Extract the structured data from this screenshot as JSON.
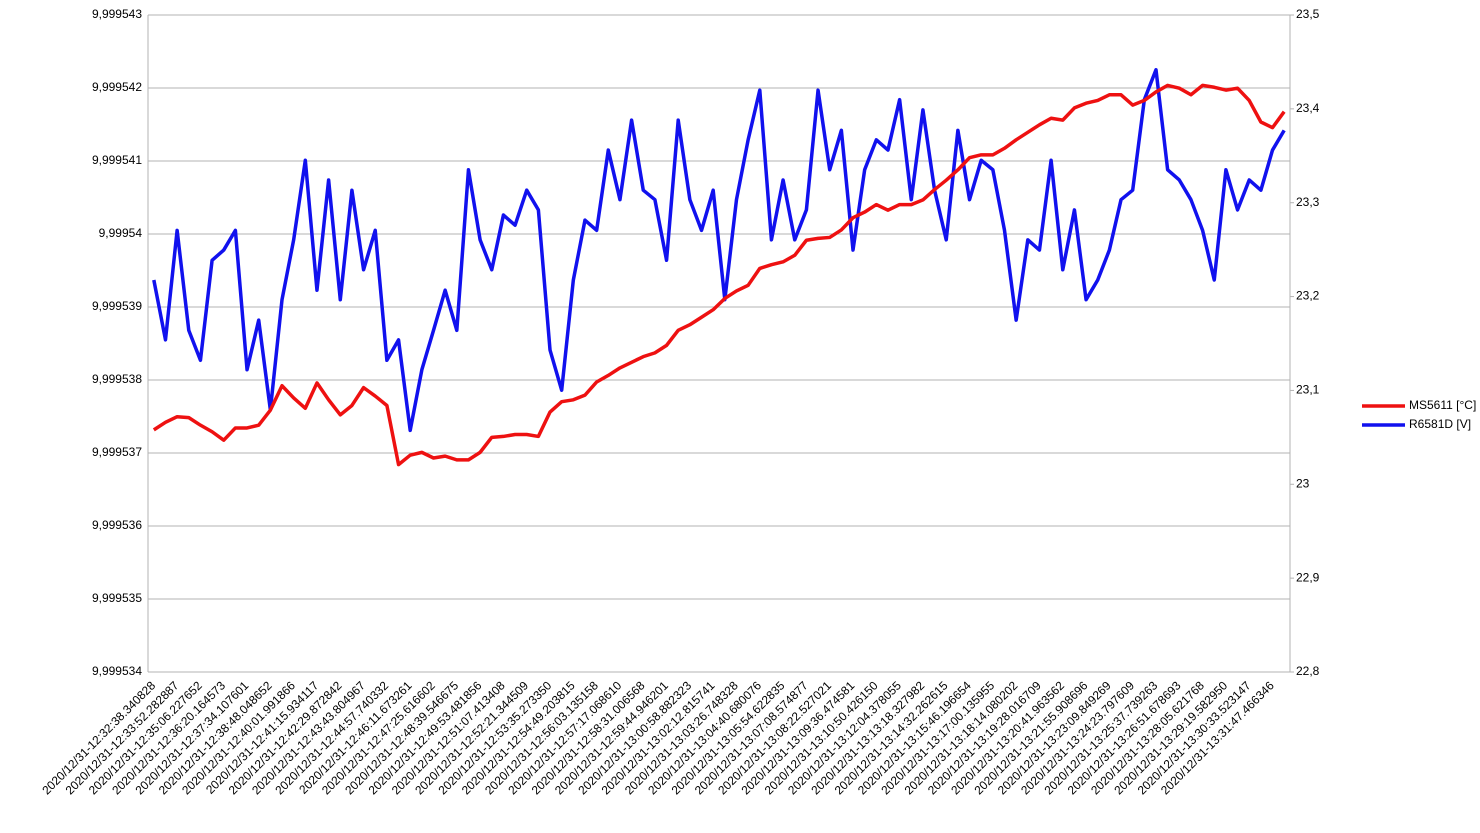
{
  "chart_data": {
    "type": "line",
    "categories": [
      "2020/12/31-12:32:38.340828",
      null,
      "2020/12/31-12:33:52.282887",
      null,
      "2020/12/31-12:35:06.227652",
      null,
      "2020/12/31-12:36:20.164573",
      null,
      "2020/12/31-12:37:34.107601",
      null,
      "2020/12/31-12:38:48.048652",
      null,
      "2020/12/31-12:40:01.991866",
      null,
      "2020/12/31-12:41:15.934117",
      null,
      "2020/12/31-12:42:29.872842",
      null,
      "2020/12/31-12:43:43.804967",
      null,
      "2020/12/31-12:44:57.740332",
      null,
      "2020/12/31-12:46:11.673261",
      null,
      "2020/12/31-12:47:25.616602",
      null,
      "2020/12/31-12:48:39.546675",
      null,
      "2020/12/31-12:49:53.481856",
      null,
      "2020/12/31-12:51:07.413408",
      null,
      "2020/12/31-12:52:21.344509",
      null,
      "2020/12/31-12:53:35.273350",
      null,
      "2020/12/31-12:54:49.203815",
      null,
      "2020/12/31-12:56:03.135158",
      null,
      "2020/12/31-12:57:17.068610",
      null,
      "2020/12/31-12:58:31.006568",
      null,
      "2020/12/31-12:59:44.946201",
      null,
      "2020/12/31-13:00:58.882323",
      null,
      "2020/12/31-13:02:12.815741",
      null,
      "2020/12/31-13:03:26.748328",
      null,
      "2020/12/31-13:04:40.680076",
      null,
      "2020/12/31-13:05:54.622835",
      null,
      "2020/12/31-13:07:08.574877",
      null,
      "2020/12/31-13:08:22.527021",
      null,
      "2020/12/31-13:09:36.474581",
      null,
      "2020/12/31-13:10:50.426150",
      null,
      "2020/12/31-13:12:04.378055",
      null,
      "2020/12/31-13:13:18.327982",
      null,
      "2020/12/31-13:14:32.262615",
      null,
      "2020/12/31-13:15:46.196654",
      null,
      "2020/12/31-13:17:00.135955",
      null,
      "2020/12/31-13:18:14.080202",
      null,
      "2020/12/31-13:19:28.016709",
      null,
      "2020/12/31-13:20:41.963562",
      null,
      "2020/12/31-13:21:55.908696",
      null,
      "2020/12/31-13:23:09.849269",
      null,
      "2020/12/31-13:24:23.797609",
      null,
      "2020/12/31-13:25:37.739263",
      null,
      "2020/12/31-13:26:51.678693",
      null,
      "2020/12/31-13:28:05.621768",
      null,
      "2020/12/31-13:29:19.582950",
      null,
      "2020/12/31-13:30:33.523147",
      null,
      "2020/12/31-13:31:47.466346",
      null
    ],
    "series": [
      {
        "name": "MS5611 [°C]",
        "color": "#ee1111",
        "axis": "y2",
        "values": [
          23.058,
          23.066,
          23.072,
          23.071,
          23.063,
          23.056,
          23.047,
          23.06,
          23.06,
          23.063,
          23.079,
          23.105,
          23.092,
          23.081,
          23.108,
          23.09,
          23.074,
          23.084,
          23.103,
          23.094,
          23.084,
          23.021,
          23.031,
          23.034,
          23.028,
          23.03,
          23.026,
          23.026,
          23.034,
          23.05,
          23.051,
          23.053,
          23.053,
          23.051,
          23.077,
          23.088,
          23.09,
          23.095,
          23.109,
          23.116,
          23.124,
          23.13,
          23.136,
          23.14,
          23.148,
          23.164,
          23.17,
          23.178,
          23.186,
          23.198,
          23.206,
          23.212,
          23.23,
          23.234,
          23.237,
          23.244,
          23.26,
          23.262,
          23.263,
          23.271,
          23.284,
          23.29,
          23.298,
          23.292,
          23.298,
          23.298,
          23.303,
          23.314,
          23.324,
          23.335,
          23.348,
          23.351,
          23.351,
          23.358,
          23.367,
          23.375,
          23.383,
          23.39,
          23.388,
          23.401,
          23.406,
          23.409,
          23.415,
          23.415,
          23.404,
          23.409,
          23.418,
          23.425,
          23.422,
          23.415,
          23.425,
          23.423,
          23.42,
          23.422,
          23.409,
          23.386,
          23.38,
          23.397
        ]
      },
      {
        "name": "R6581D [V]",
        "color": "#1111ee",
        "axis": "y",
        "values": [
          9.99953937,
          9.99953855,
          9.99954005,
          9.99953868,
          9.99953827,
          9.99953964,
          9.99953978,
          9.99954005,
          9.99953814,
          9.99953882,
          9.99953759,
          9.9995391,
          9.99953992,
          9.99954101,
          9.99953923,
          9.99954074,
          9.9995391,
          9.9995406,
          9.99953951,
          9.99954005,
          9.99953827,
          9.99953855,
          9.99953731,
          9.99953814,
          9.99953868,
          9.99953923,
          9.99953868,
          9.99954088,
          9.99953992,
          9.99953951,
          9.99954026,
          9.99954012,
          9.9995406,
          9.99954033,
          9.99953841,
          9.99953786,
          9.99953937,
          9.99954019,
          9.99954005,
          9.99954115,
          9.99954047,
          9.99954156,
          9.9995406,
          9.99954047,
          9.99953964,
          9.99954156,
          9.99954047,
          9.99954005,
          9.9995406,
          9.9995391,
          9.99954047,
          9.99954129,
          9.99954197,
          9.99953992,
          9.99954074,
          9.99953992,
          9.99954033,
          9.99954197,
          9.99954088,
          9.99954142,
          9.99953978,
          9.99954088,
          9.99954129,
          9.99954115,
          9.99954184,
          9.99954047,
          9.9995417,
          9.9995406,
          9.99953992,
          9.99954142,
          9.99954047,
          9.99954101,
          9.99954088,
          9.99954005,
          9.99953882,
          9.99953992,
          9.99953978,
          9.99954101,
          9.99953951,
          9.99954033,
          9.9995391,
          9.99953937,
          9.99953978,
          9.99954047,
          9.9995406,
          9.99954184,
          9.99954225,
          9.99954088,
          9.99954074,
          9.99954047,
          9.99954005,
          9.99953937,
          9.99954088,
          9.99954033,
          9.99954074,
          9.9995406,
          9.99954115,
          9.99954142
        ]
      }
    ],
    "ylim": [
      9.999534,
      9.999543
    ],
    "yticks": [
      {
        "value": 9.999534,
        "label": "9,999534"
      },
      {
        "value": 9.999535,
        "label": "9,999535"
      },
      {
        "value": 9.999536,
        "label": "9,999536"
      },
      {
        "value": 9.999537,
        "label": "9,999537"
      },
      {
        "value": 9.999538,
        "label": "9,999538"
      },
      {
        "value": 9.999539,
        "label": "9,999539"
      },
      {
        "value": 9.99954,
        "label": "9,99954"
      },
      {
        "value": 9.999541,
        "label": "9,999541"
      },
      {
        "value": 9.999542,
        "label": "9,999542"
      },
      {
        "value": 9.999543,
        "label": "9,999543"
      }
    ],
    "y2lim": [
      22.8,
      23.5
    ],
    "y2ticks": [
      {
        "value": 22.8,
        "label": "22,8"
      },
      {
        "value": 22.9,
        "label": "22,9"
      },
      23,
      {
        "value": 23.1,
        "label": "23,1"
      },
      {
        "value": 23.2,
        "label": "23,2"
      },
      {
        "value": 23.3,
        "label": "23,3"
      },
      {
        "value": 23.4,
        "label": "23,4"
      },
      {
        "value": 23.5,
        "label": "23,5"
      }
    ],
    "grid": true,
    "legend": "right"
  }
}
